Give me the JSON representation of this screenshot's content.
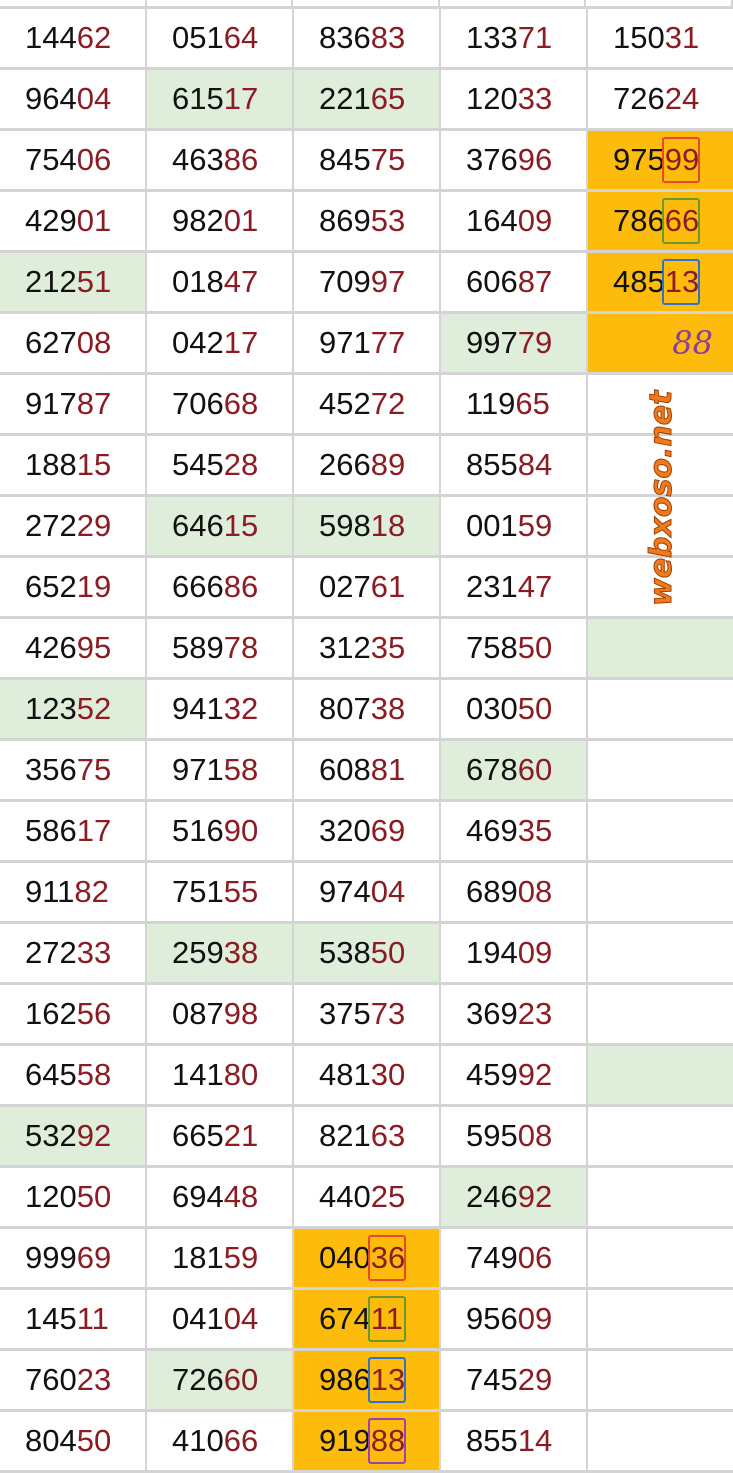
{
  "watermark": "webxoso.net",
  "colors": {
    "green_highlight": "#dfeedb",
    "orange_highlight": "#fdbb0c",
    "tail_digits": "#8c1c24",
    "box_red": "#e5482a",
    "box_green": "#6a9a2a",
    "box_blue": "#2f74c8",
    "box_purple": "#9b3fb5"
  },
  "rows": [
    [
      {
        "v": "14462"
      },
      {
        "v": "05164"
      },
      {
        "v": "83683"
      },
      {
        "v": "13371"
      },
      {
        "v": "15031"
      }
    ],
    [
      {
        "v": "96404"
      },
      {
        "v": "61517",
        "bg": "g"
      },
      {
        "v": "22165",
        "bg": "g"
      },
      {
        "v": "12033"
      },
      {
        "v": "72624"
      }
    ],
    [
      {
        "v": "75406"
      },
      {
        "v": "46386"
      },
      {
        "v": "84575"
      },
      {
        "v": "37696"
      },
      {
        "v": "97599",
        "bg": "o",
        "box": "red"
      }
    ],
    [
      {
        "v": "42901"
      },
      {
        "v": "98201"
      },
      {
        "v": "86953"
      },
      {
        "v": "16409"
      },
      {
        "v": "78666",
        "bg": "o",
        "box": "green"
      }
    ],
    [
      {
        "v": "21251",
        "bg": "g"
      },
      {
        "v": "01847"
      },
      {
        "v": "70997"
      },
      {
        "v": "60687"
      },
      {
        "v": "48513",
        "bg": "o",
        "box": "blue"
      }
    ],
    [
      {
        "v": "62708"
      },
      {
        "v": "04217"
      },
      {
        "v": "97177"
      },
      {
        "v": "99779",
        "bg": "g"
      },
      {
        "v": "",
        "bg": "o",
        "hand": "88"
      }
    ],
    [
      {
        "v": "91787"
      },
      {
        "v": "70668"
      },
      {
        "v": "45272"
      },
      {
        "v": "11965"
      },
      {
        "v": ""
      }
    ],
    [
      {
        "v": "18815"
      },
      {
        "v": "54528"
      },
      {
        "v": "26689"
      },
      {
        "v": "85584"
      },
      {
        "v": ""
      }
    ],
    [
      {
        "v": "27229"
      },
      {
        "v": "64615",
        "bg": "g"
      },
      {
        "v": "59818",
        "bg": "g"
      },
      {
        "v": "00159"
      },
      {
        "v": ""
      }
    ],
    [
      {
        "v": "65219"
      },
      {
        "v": "66686"
      },
      {
        "v": "02761"
      },
      {
        "v": "23147"
      },
      {
        "v": ""
      }
    ],
    [
      {
        "v": "42695"
      },
      {
        "v": "58978"
      },
      {
        "v": "31235"
      },
      {
        "v": "75850"
      },
      {
        "v": "",
        "bg": "g"
      }
    ],
    [
      {
        "v": "12352",
        "bg": "g"
      },
      {
        "v": "94132"
      },
      {
        "v": "80738"
      },
      {
        "v": "03050"
      },
      {
        "v": ""
      }
    ],
    [
      {
        "v": "35675"
      },
      {
        "v": "97158"
      },
      {
        "v": "60881"
      },
      {
        "v": "67860",
        "bg": "g"
      },
      {
        "v": ""
      }
    ],
    [
      {
        "v": "58617"
      },
      {
        "v": "51690"
      },
      {
        "v": "32069"
      },
      {
        "v": "46935"
      },
      {
        "v": ""
      }
    ],
    [
      {
        "v": "91182"
      },
      {
        "v": "75155"
      },
      {
        "v": "97404"
      },
      {
        "v": "68908"
      },
      {
        "v": ""
      }
    ],
    [
      {
        "v": "27233"
      },
      {
        "v": "25938",
        "bg": "g"
      },
      {
        "v": "53850",
        "bg": "g"
      },
      {
        "v": "19409"
      },
      {
        "v": ""
      }
    ],
    [
      {
        "v": "16256"
      },
      {
        "v": "08798"
      },
      {
        "v": "37573"
      },
      {
        "v": "36923"
      },
      {
        "v": ""
      }
    ],
    [
      {
        "v": "64558"
      },
      {
        "v": "14180"
      },
      {
        "v": "48130"
      },
      {
        "v": "45992"
      },
      {
        "v": "",
        "bg": "g"
      }
    ],
    [
      {
        "v": "53292",
        "bg": "g"
      },
      {
        "v": "66521"
      },
      {
        "v": "82163"
      },
      {
        "v": "59508"
      },
      {
        "v": ""
      }
    ],
    [
      {
        "v": "12050"
      },
      {
        "v": "69448"
      },
      {
        "v": "44025"
      },
      {
        "v": "24692",
        "bg": "g"
      },
      {
        "v": ""
      }
    ],
    [
      {
        "v": "99969"
      },
      {
        "v": "18159"
      },
      {
        "v": "04036",
        "bg": "o",
        "box": "red"
      },
      {
        "v": "74906"
      },
      {
        "v": ""
      }
    ],
    [
      {
        "v": "14511"
      },
      {
        "v": "04104"
      },
      {
        "v": "67411",
        "bg": "o",
        "box": "green"
      },
      {
        "v": "95609"
      },
      {
        "v": ""
      }
    ],
    [
      {
        "v": "76023"
      },
      {
        "v": "72660",
        "bg": "g"
      },
      {
        "v": "98613",
        "bg": "o",
        "box": "blue"
      },
      {
        "v": "74529"
      },
      {
        "v": ""
      }
    ],
    [
      {
        "v": "80450"
      },
      {
        "v": "41066"
      },
      {
        "v": "91988",
        "bg": "o",
        "box": "purple"
      },
      {
        "v": "85514"
      },
      {
        "v": ""
      }
    ]
  ]
}
